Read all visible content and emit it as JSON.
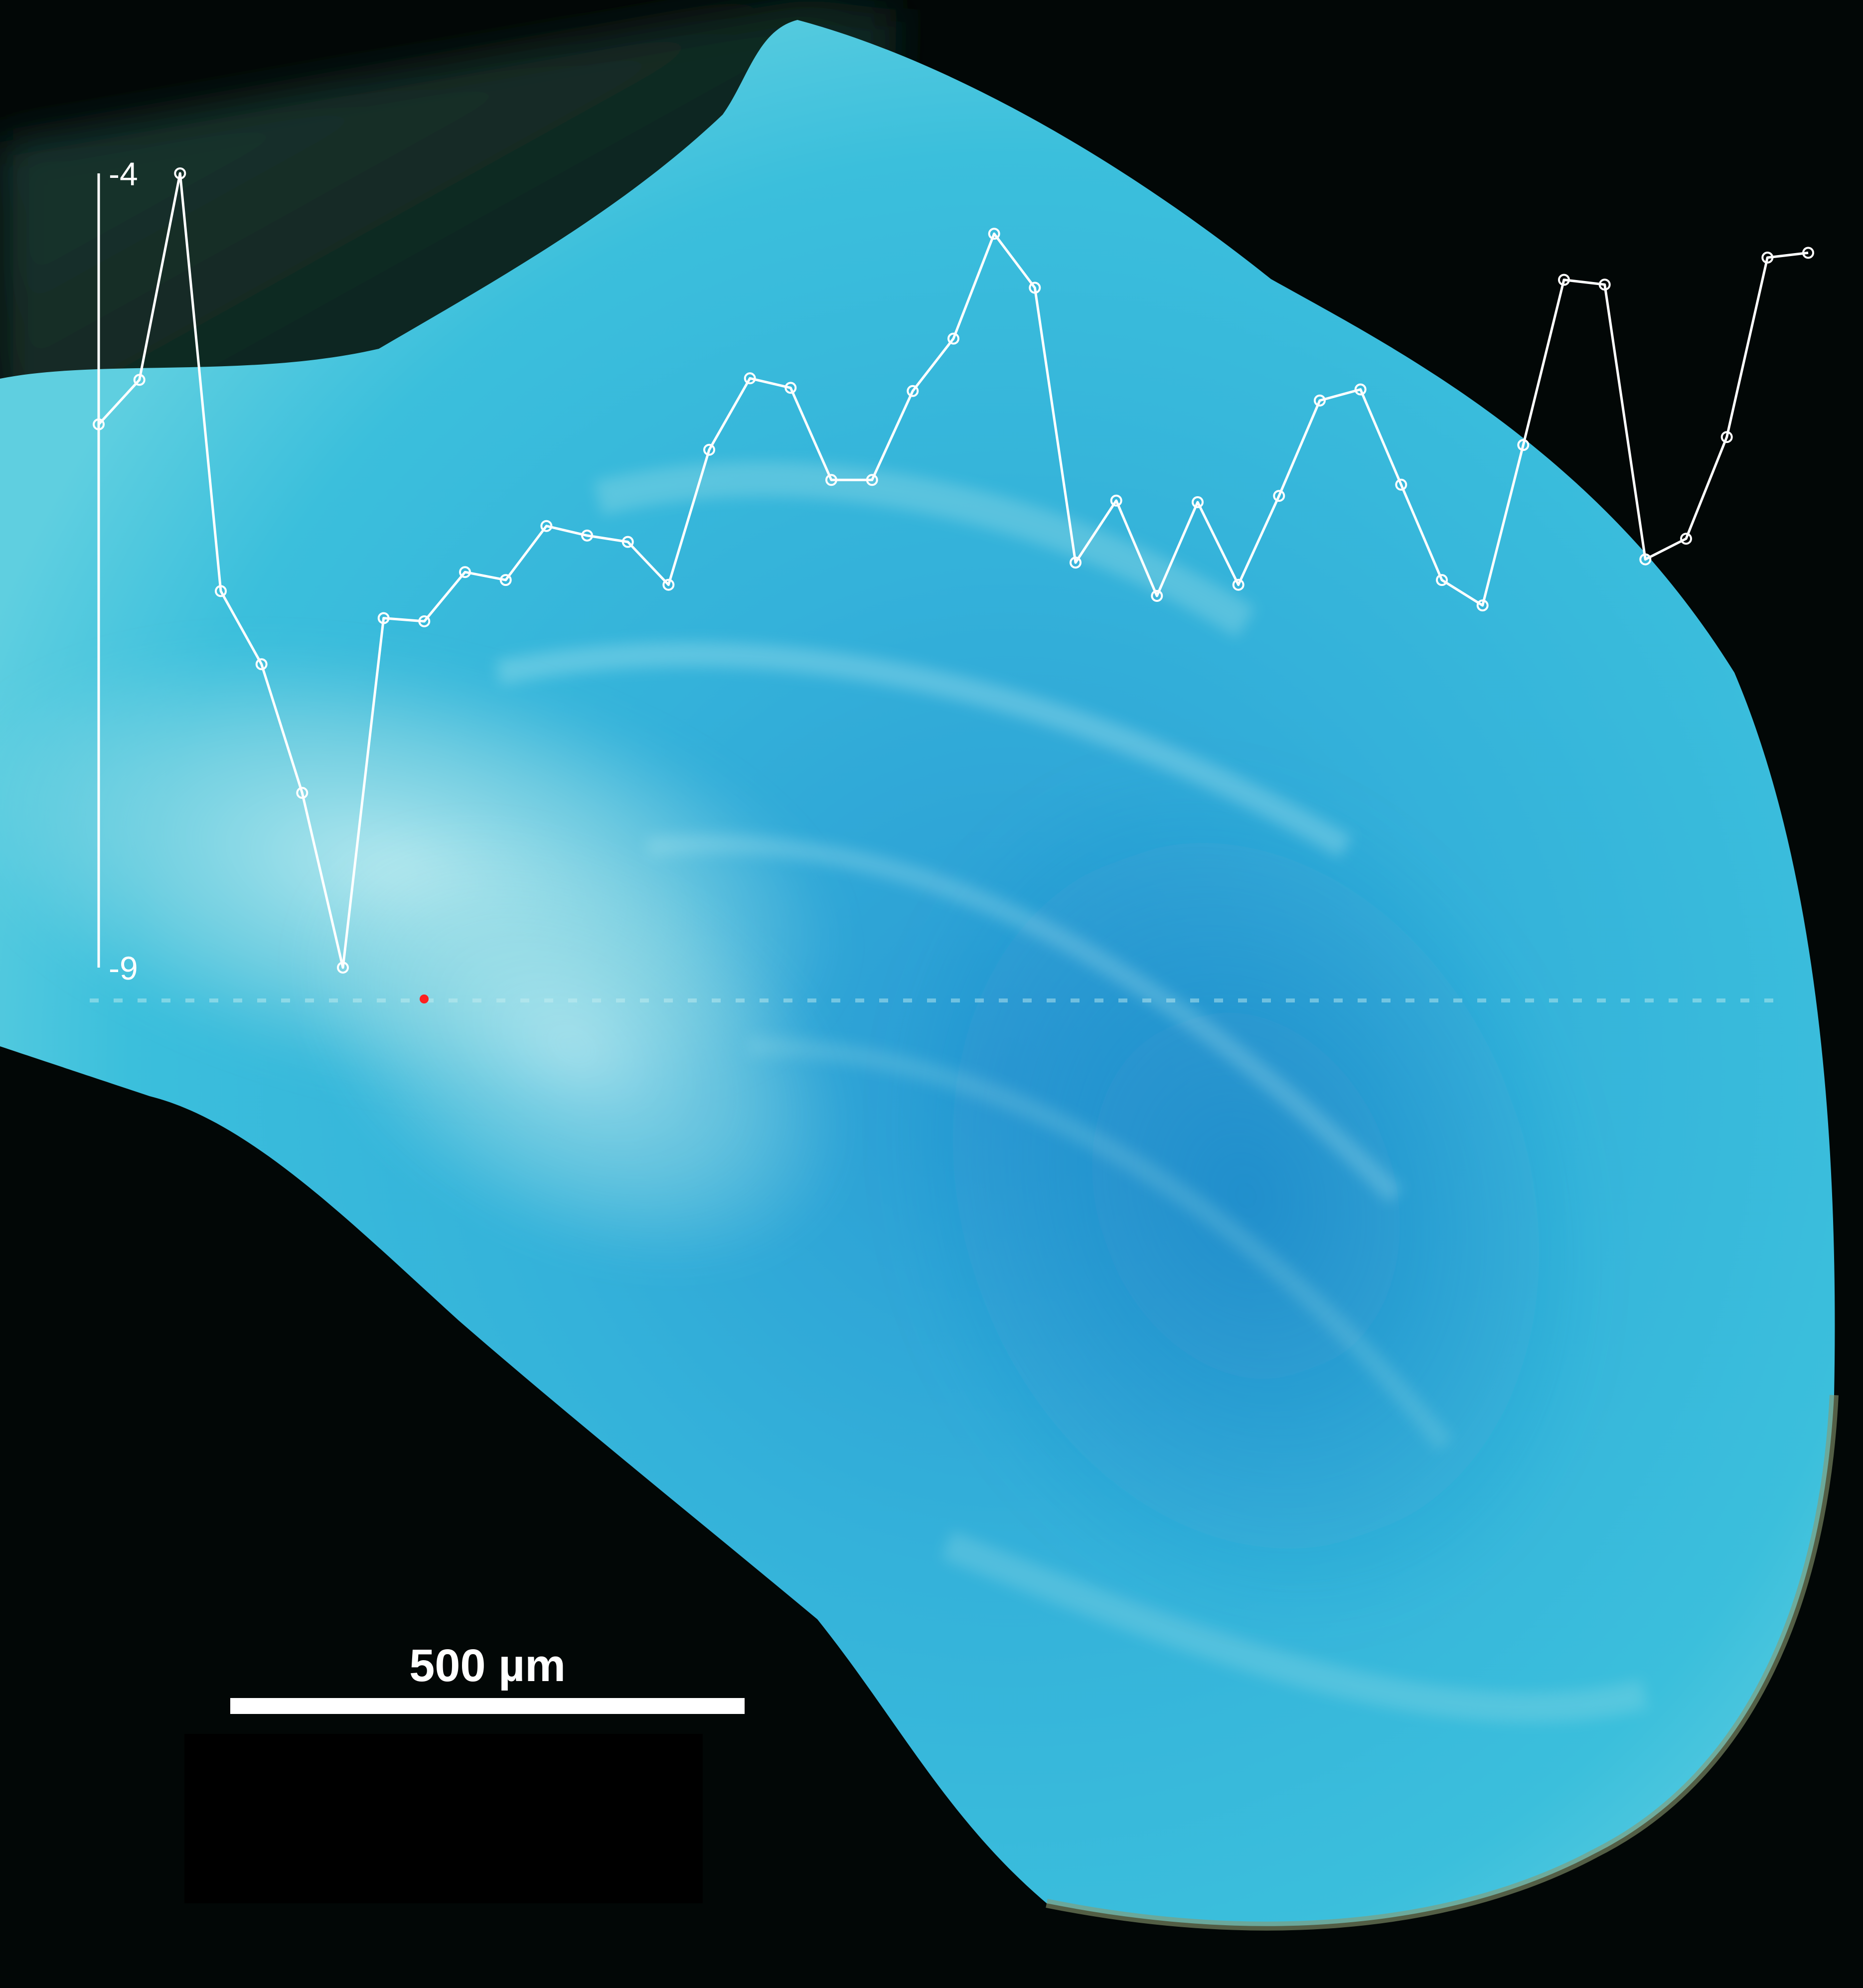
{
  "chart_data": {
    "type": "line",
    "y_axis": {
      "top_label": "-4",
      "bottom_label": "-9",
      "ylim": [
        -9,
        -4
      ]
    },
    "x": [
      0,
      1,
      2,
      3,
      4,
      5,
      6,
      7,
      8,
      9,
      10,
      11,
      12,
      13,
      14,
      15,
      16,
      17,
      18,
      19,
      20,
      21,
      22,
      23,
      24,
      25,
      26,
      27,
      28,
      29,
      30,
      31,
      32,
      33,
      34,
      35,
      36,
      37,
      38,
      39,
      40,
      41,
      42
    ],
    "values": [
      -5.58,
      -5.3,
      -4.0,
      -6.63,
      -7.09,
      -7.9,
      -9.0,
      -6.8,
      -6.82,
      -6.51,
      -6.56,
      -6.22,
      -6.28,
      -6.32,
      -6.59,
      -5.74,
      -5.29,
      -5.35,
      -5.93,
      -5.93,
      -5.37,
      -5.04,
      -4.38,
      -4.72,
      -6.45,
      -6.06,
      -6.66,
      -6.07,
      -6.59,
      -6.03,
      -5.43,
      -5.36,
      -5.96,
      -6.56,
      -6.72,
      -5.71,
      -4.67,
      -4.7,
      -6.43,
      -6.3,
      -5.66,
      -4.53,
      -4.5
    ],
    "line_color": "#ffffff"
  },
  "scale_bar": {
    "label": "500 µm"
  },
  "image": {
    "background_color": "#000000",
    "specimen_colors": [
      "#9fdfe6",
      "#3bbfdc",
      "#2a9bd4",
      "#0f2a24"
    ],
    "marker_color": "#ff2020"
  }
}
